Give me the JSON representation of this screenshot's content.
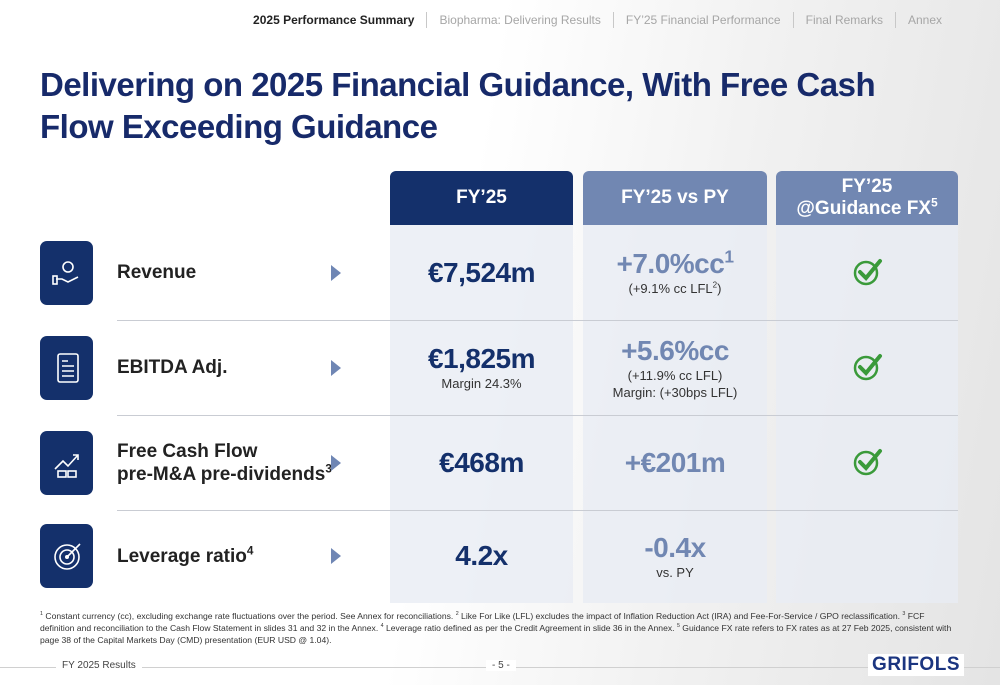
{
  "nav": [
    "2025 Performance Summary",
    "Biopharma: Delivering Results",
    "FY’25 Financial Performance",
    "Final Remarks",
    "Annex"
  ],
  "title": "Delivering on 2025 Financial Guidance, With Free Cash Flow Exceeding Guidance",
  "table": {
    "headers": [
      [
        [
          {
            "text": "FY’25"
          }
        ]
      ],
      [
        [
          {
            "text": "FY’25 vs PY"
          }
        ]
      ],
      [
        [
          {
            "text": "FY’25"
          }
        ],
        [
          {
            "text": "@Guidance FX"
          },
          {
            "sup": "5"
          }
        ]
      ]
    ],
    "rows": [
      {
        "label": [
          [
            {
              "text": "Revenue"
            }
          ]
        ],
        "fy": {
          "main": [
            [
              {
                "text": "€7,524m"
              }
            ]
          ]
        },
        "vs": {
          "main": [
            [
              {
                "text": "+7.0%cc"
              },
              {
                "sup": "1"
              }
            ]
          ],
          "note": [
            [
              {
                "text": "(+9.1% cc LFL"
              },
              {
                "sup": "2"
              },
              {
                "text": ")"
              }
            ]
          ]
        },
        "guidance": true
      },
      {
        "label": [
          [
            {
              "text": "EBITDA Adj."
            }
          ]
        ],
        "fy": {
          "main": [
            [
              {
                "text": "€1,825m"
              }
            ]
          ],
          "note": [
            [
              {
                "text": "Margin 24.3%"
              }
            ]
          ]
        },
        "vs": {
          "main": [
            [
              {
                "text": "+5.6%cc"
              }
            ]
          ],
          "note": [
            [
              {
                "text": "(+11.9% cc LFL)"
              }
            ],
            [
              {
                "text": "Margin: (+30bps LFL)"
              }
            ]
          ]
        },
        "guidance": true
      },
      {
        "label": [
          [
            {
              "text": "Free Cash Flow"
            }
          ],
          [
            {
              "text": "pre-M&A pre-dividends"
            },
            {
              "sup": "3"
            }
          ]
        ],
        "fy": {
          "main": [
            [
              {
                "text": "€468m"
              }
            ]
          ]
        },
        "vs": {
          "main": [
            [
              {
                "text": "+€201m"
              }
            ]
          ]
        },
        "guidance": true
      },
      {
        "label": [
          [
            {
              "text": "Leverage ratio"
            },
            {
              "sup": "4"
            }
          ]
        ],
        "fy": {
          "main": [
            [
              {
                "text": "4.2x"
              }
            ]
          ]
        },
        "vs": {
          "main": [
            [
              {
                "text": "-0.4x"
              }
            ]
          ],
          "note": [
            [
              {
                "text": "vs. PY"
              }
            ]
          ]
        },
        "guidance": false
      }
    ]
  },
  "footnotes": [
    {
      "sup": "1"
    },
    {
      "text": " Constant currency (cc), excluding exchange rate fluctuations over the period. See Annex for reconciliations. "
    },
    {
      "sup": "2"
    },
    {
      "text": " Like For Like (LFL) excludes the impact of Inflation Reduction Act (IRA) and Fee-For-Service / GPO reclassification. "
    },
    {
      "sup": "3"
    },
    {
      "text": " FCF definition and reconciliation to the Cash Flow Statement in slides 31 and 32 in the Annex. "
    },
    {
      "sup": "4"
    },
    {
      "text": " Leverage ratio defined as per the Credit Agreement in slide 36 in the Annex. "
    },
    {
      "sup": "5"
    },
    {
      "text": " Guidance FX rate refers to FX rates as at 27 Feb 2025, consistent with page 38 of the Capital Markets Day (CMD) presentation (EUR USD @ 1.04)."
    }
  ],
  "footer": {
    "left": "FY 2025 Results",
    "page": "- 5 -",
    "brand": "GRIFOLS"
  }
}
